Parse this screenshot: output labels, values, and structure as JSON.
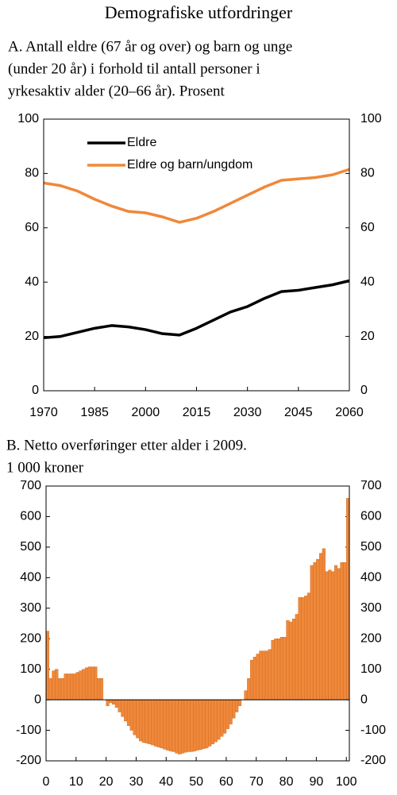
{
  "title": "Demografiske utfordringer",
  "chart_data": [
    {
      "type": "line",
      "subtitle": [
        "A.  Antall eldre (67 år og over) og barn og unge",
        "(under 20 år) i forhold til antall personer i",
        "yrkesaktiv alder (20–66 år). Prosent"
      ],
      "x": [
        1970,
        1975,
        1980,
        1985,
        1990,
        1995,
        2000,
        2005,
        2010,
        2015,
        2020,
        2025,
        2030,
        2035,
        2040,
        2045,
        2050,
        2055,
        2060
      ],
      "series": [
        {
          "name": "Eldre",
          "color": "#000000",
          "values": [
            19.5,
            20,
            21.5,
            23,
            24,
            23.5,
            22.5,
            21,
            20.5,
            23,
            26,
            29,
            31,
            34,
            36.5,
            37,
            38,
            39,
            40.5
          ]
        },
        {
          "name": "Eldre og barn/ungdom",
          "color": "#f0883a",
          "values": [
            76.5,
            75.5,
            73.5,
            70.5,
            68,
            66,
            65.5,
            64,
            62,
            63.5,
            66,
            69,
            72,
            75,
            77.5,
            78,
            78.5,
            79.5,
            81.5
          ]
        }
      ],
      "xlim": [
        1970,
        2060
      ],
      "xticks": [
        1970,
        1985,
        2000,
        2015,
        2030,
        2045,
        2060
      ],
      "ylim": [
        0,
        100
      ],
      "yticks": [
        0,
        20,
        40,
        60,
        80,
        100
      ],
      "legend": "upper left"
    },
    {
      "type": "bar",
      "subtitle": [
        "B.  Netto overføringer etter alder i 2009.",
        "1 000 kroner"
      ],
      "x": [
        0,
        1,
        2,
        3,
        4,
        5,
        6,
        7,
        8,
        9,
        10,
        11,
        12,
        13,
        14,
        15,
        16,
        17,
        18,
        19,
        20,
        21,
        22,
        23,
        24,
        25,
        26,
        27,
        28,
        29,
        30,
        31,
        32,
        33,
        34,
        35,
        36,
        37,
        38,
        39,
        40,
        41,
        42,
        43,
        44,
        45,
        46,
        47,
        48,
        49,
        50,
        51,
        52,
        53,
        54,
        55,
        56,
        57,
        58,
        59,
        60,
        61,
        62,
        63,
        64,
        65,
        66,
        67,
        68,
        69,
        70,
        71,
        72,
        73,
        74,
        75,
        76,
        77,
        78,
        79,
        80,
        81,
        82,
        83,
        84,
        85,
        86,
        87,
        88,
        89,
        90,
        91,
        92,
        93,
        94,
        95,
        96,
        97,
        98,
        99,
        100
      ],
      "values": [
        225,
        70,
        95,
        100,
        70,
        70,
        85,
        85,
        85,
        85,
        90,
        95,
        100,
        105,
        108,
        108,
        108,
        70,
        70,
        0,
        -20,
        -10,
        -15,
        -25,
        -40,
        -55,
        -70,
        -85,
        -100,
        -115,
        -125,
        -135,
        -140,
        -142,
        -145,
        -148,
        -152,
        -155,
        -158,
        -162,
        -165,
        -168,
        -170,
        -175,
        -178,
        -175,
        -172,
        -170,
        -170,
        -168,
        -165,
        -163,
        -160,
        -158,
        -152,
        -145,
        -138,
        -130,
        -120,
        -110,
        -95,
        -80,
        -60,
        -40,
        -20,
        0,
        30,
        70,
        130,
        140,
        150,
        160,
        160,
        160,
        165,
        195,
        200,
        200,
        205,
        205,
        260,
        255,
        265,
        280,
        335,
        335,
        340,
        350,
        440,
        450,
        460,
        480,
        495,
        420,
        425,
        420,
        440,
        430,
        450,
        450,
        660
      ],
      "color": "#f0883a",
      "xlim": [
        0,
        101
      ],
      "xticks": [
        0,
        10,
        20,
        30,
        40,
        50,
        60,
        70,
        80,
        90,
        100
      ],
      "ylim": [
        -200,
        700
      ],
      "yticks": [
        -200,
        -100,
        0,
        100,
        200,
        300,
        400,
        500,
        600,
        700
      ]
    }
  ]
}
